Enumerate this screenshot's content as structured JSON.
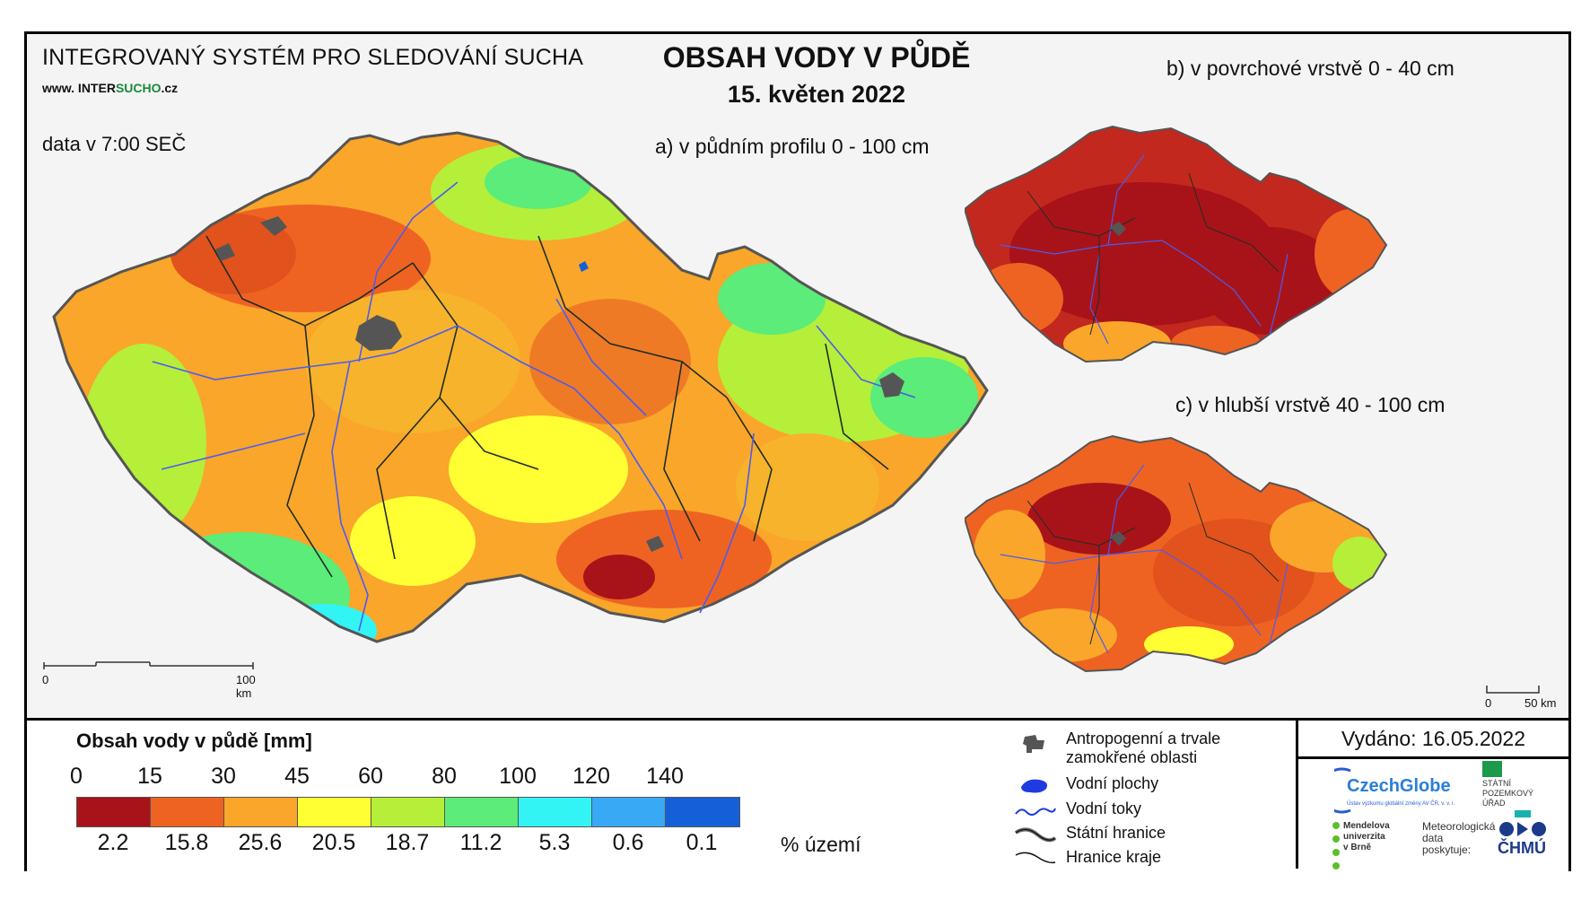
{
  "header": {
    "system": "INTEGROVANÝ SYSTÉM PRO SLEDOVÁNÍ SUCHA",
    "www_prefix": "www. INTER",
    "www_highlight": "SUCHO",
    "www_suffix": ".cz",
    "data_time": "data v 7:00 SEČ",
    "title": "OBSAH VODY V PŮDĚ",
    "date": "15. květen 2022"
  },
  "maps": {
    "a_label": "a) v půdním profilu 0 - 100 cm",
    "b_label": "b) v povrchové vrstvě 0 - 40 cm",
    "c_label": "c) v hlubší vrstvě 40 - 100 cm",
    "scale_main": {
      "start": "0",
      "end": "100 km"
    },
    "scale_small": {
      "start": "0",
      "end": "50 km"
    }
  },
  "legend": {
    "title": "Obsah vody v půdě  [mm]",
    "ticks": [
      "0",
      "15",
      "30",
      "45",
      "60",
      "80",
      "100",
      "120",
      "140"
    ],
    "colors": [
      "#a8131a",
      "#ef6322",
      "#f9a62a",
      "#ffff33",
      "#b5ef3a",
      "#5bec7a",
      "#33f4f4",
      "#38a9f4",
      "#1560d8"
    ],
    "percents": [
      "2.2",
      "15.8",
      "25.6",
      "20.5",
      "18.7",
      "11.2",
      "5.3",
      "0.6",
      "0.1"
    ],
    "percent_unit": "% území"
  },
  "symbols": [
    {
      "icon": "urban-area-icon",
      "label_1": "Antropogenní a trvale",
      "label_2": "zamokřené oblasti"
    },
    {
      "icon": "water-body-icon",
      "label_1": "Vodní plochy"
    },
    {
      "icon": "river-icon",
      "label_1": "Vodní toky"
    },
    {
      "icon": "state-border-icon",
      "label_1": "Státní hranice"
    },
    {
      "icon": "region-border-icon",
      "label_1": "Hranice kraje"
    }
  ],
  "issued": "Vydáno: 16.05.2022",
  "logos": {
    "czechglobe": "CzechGlobe",
    "czechglobe_sub": "Ústav výzkumu globální změny AV ČR, v. v. i.",
    "spu_1": "STÁTNÍ",
    "spu_2": "POZEMKOVÝ",
    "spu_3": "ÚŘAD",
    "mendel_1": "Mendelova",
    "mendel_2": "univerzita",
    "mendel_3": "v Brně",
    "meteo_1": "Meteorologická",
    "meteo_2": "data",
    "meteo_3": "poskytuje:",
    "chmu": "ČHMÚ"
  }
}
